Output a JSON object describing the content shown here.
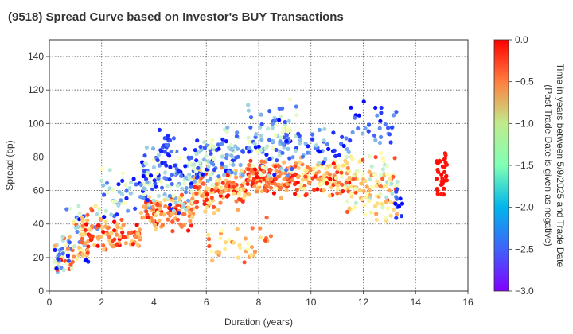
{
  "chart_data": {
    "type": "scatter",
    "title": "(9518)   Spread Curve based on Investor's BUY Transactions",
    "xlabel": "Duration (years)",
    "ylabel": "Spread (bp)",
    "xlim": [
      0,
      16
    ],
    "ylim": [
      0,
      150
    ],
    "xticks": [
      0,
      2,
      4,
      6,
      8,
      10,
      12,
      14,
      16
    ],
    "yticks": [
      0,
      20,
      40,
      60,
      80,
      100,
      120,
      140
    ],
    "grid": true,
    "colorbar": {
      "label_line1": "Time in years between 5/9/2025 and Trade Date",
      "label_line2": "(Past Trade Date is given as negative)",
      "range": [
        -3.0,
        0.0
      ],
      "ticks": [
        0.0,
        -0.5,
        -1.0,
        -1.5,
        -2.0,
        -2.5,
        -3.0
      ],
      "tick_labels": [
        "0.0",
        "−0.5",
        "−1.0",
        "−1.5",
        "−2.0",
        "−2.5",
        "−3.0"
      ],
      "colormap": "rainbow"
    },
    "clusters": [
      {
        "x": [
          0.2,
          1.5
        ],
        "y": [
          10,
          35
        ],
        "c": [
          -3.0,
          0.0
        ],
        "n": 70
      },
      {
        "x": [
          0.5,
          2.0
        ],
        "y": [
          25,
          55
        ],
        "c": [
          -3.0,
          -0.3
        ],
        "n": 40
      },
      {
        "x": [
          1.2,
          3.5
        ],
        "y": [
          20,
          45
        ],
        "c": [
          -1.0,
          0.0
        ],
        "n": 90
      },
      {
        "x": [
          2.0,
          3.8
        ],
        "y": [
          40,
          75
        ],
        "c": [
          -3.0,
          -1.5
        ],
        "n": 50
      },
      {
        "x": [
          3.5,
          5.5
        ],
        "y": [
          35,
          60
        ],
        "c": [
          -1.0,
          0.0
        ],
        "n": 110
      },
      {
        "x": [
          3.5,
          5.5
        ],
        "y": [
          45,
          90
        ],
        "c": [
          -3.0,
          -1.5
        ],
        "n": 120
      },
      {
        "x": [
          4.2,
          4.8
        ],
        "y": [
          70,
          100
        ],
        "c": [
          -3.0,
          -2.5
        ],
        "n": 25
      },
      {
        "x": [
          5.5,
          7.5
        ],
        "y": [
          45,
          75
        ],
        "c": [
          -1.2,
          0.0
        ],
        "n": 130
      },
      {
        "x": [
          5.5,
          7.5
        ],
        "y": [
          60,
          100
        ],
        "c": [
          -3.0,
          -1.5
        ],
        "n": 110
      },
      {
        "x": [
          6.0,
          8.5
        ],
        "y": [
          15,
          45
        ],
        "c": [
          -1.5,
          -0.2
        ],
        "n": 40
      },
      {
        "x": [
          7.5,
          9.5
        ],
        "y": [
          55,
          80
        ],
        "c": [
          -0.8,
          0.0
        ],
        "n": 140
      },
      {
        "x": [
          7.5,
          9.5
        ],
        "y": [
          60,
          115
        ],
        "c": [
          -3.0,
          -1.5
        ],
        "n": 110
      },
      {
        "x": [
          9.5,
          11.5
        ],
        "y": [
          55,
          80
        ],
        "c": [
          -1.5,
          0.0
        ],
        "n": 120
      },
      {
        "x": [
          9.5,
          11.5
        ],
        "y": [
          75,
          100
        ],
        "c": [
          -3.0,
          -2.0
        ],
        "n": 40
      },
      {
        "x": [
          11.3,
          13.3
        ],
        "y": [
          40,
          85
        ],
        "c": [
          -2.0,
          -0.2
        ],
        "n": 120
      },
      {
        "x": [
          11.5,
          13.3
        ],
        "y": [
          85,
          115
        ],
        "c": [
          -3.0,
          -2.2
        ],
        "n": 30
      },
      {
        "x": [
          13.2,
          13.5
        ],
        "y": [
          40,
          65
        ],
        "c": [
          -3.0,
          -2.5
        ],
        "n": 12
      },
      {
        "x": [
          14.8,
          15.2
        ],
        "y": [
          55,
          85
        ],
        "c": [
          -0.1,
          0.0
        ],
        "n": 35
      }
    ]
  }
}
